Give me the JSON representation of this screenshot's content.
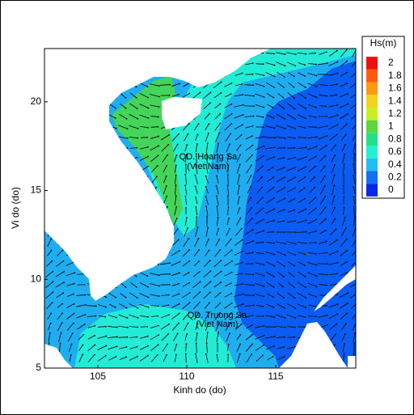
{
  "chart_data": {
    "type": "contour",
    "xlabel": "Kinh do (do)",
    "ylabel": "Vi do (do)",
    "xlim": [
      102,
      119.5
    ],
    "ylim": [
      5,
      23
    ],
    "xticks": [
      105,
      110,
      115
    ],
    "yticks": [
      5,
      10,
      15,
      20
    ],
    "annotations": [
      {
        "text": "QD. Hoang Sa",
        "x": 111.2,
        "y": 16.9
      },
      {
        "text": "(Viet Nam)",
        "x": 111.2,
        "y": 16.35
      },
      {
        "text": "QD. Truong Sa",
        "x": 111.7,
        "y": 7.95
      },
      {
        "text": "(Viet Nam)",
        "x": 111.7,
        "y": 7.45
      }
    ],
    "colorbar": {
      "title": "Hs(m)",
      "levels": [
        2,
        1.8,
        1.6,
        1.4,
        1.2,
        1,
        0.8,
        0.6,
        0.4,
        0.2,
        0
      ],
      "colors": [
        "#ee1010",
        "#ff5a10",
        "#ff9a10",
        "#f2d21a",
        "#c8f020",
        "#5ad83c",
        "#22e08a",
        "#22f0d2",
        "#20bcf2",
        "#1470f0",
        "#0a28e8"
      ]
    }
  }
}
